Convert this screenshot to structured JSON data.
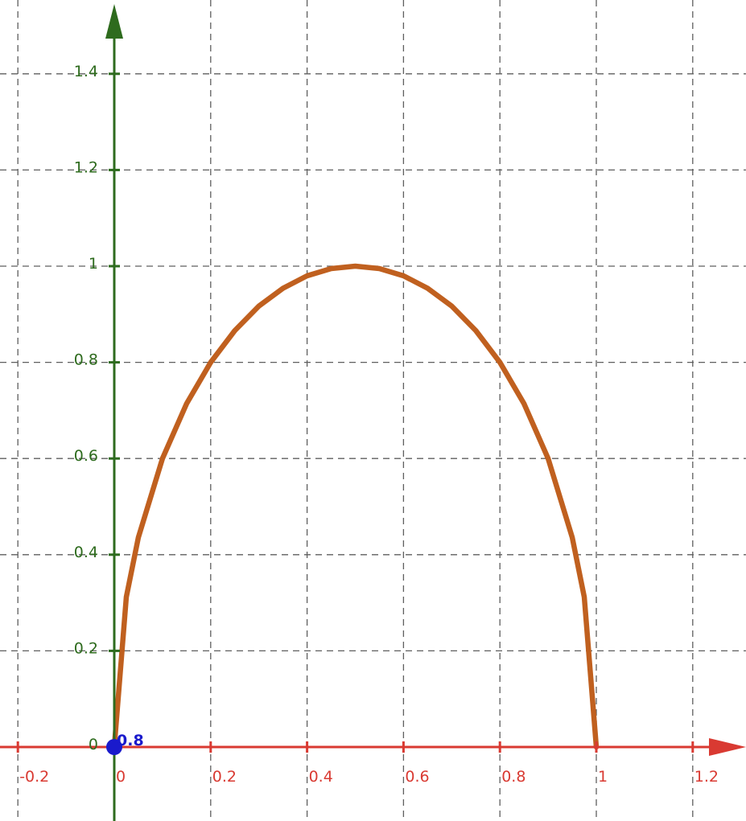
{
  "chart_data": {
    "type": "line",
    "title": "",
    "xlabel": "",
    "ylabel": "",
    "xlim": [
      -0.2,
      1.3
    ],
    "ylim": [
      -0.08,
      1.52
    ],
    "grid": true,
    "x_ticks": [
      {
        "value": -0.2,
        "label": "-0.2"
      },
      {
        "value": 0,
        "label": "0"
      },
      {
        "value": 0.2,
        "label": "0.2"
      },
      {
        "value": 0.4,
        "label": "0.4"
      },
      {
        "value": 0.6,
        "label": "0.6"
      },
      {
        "value": 0.8,
        "label": "0.8"
      },
      {
        "value": 1,
        "label": "1"
      },
      {
        "value": 1.2,
        "label": "1.2"
      }
    ],
    "y_ticks": [
      {
        "value": 0,
        "label": "0"
      },
      {
        "value": 0.2,
        "label": "0.2"
      },
      {
        "value": 0.4,
        "label": "0.4"
      },
      {
        "value": 0.6,
        "label": "0.6"
      },
      {
        "value": 0.8,
        "label": "0.8"
      },
      {
        "value": 1,
        "label": "1"
      },
      {
        "value": 1.2,
        "label": "1.2"
      },
      {
        "value": 1.4,
        "label": "1.4"
      }
    ],
    "series": [
      {
        "color": "#c0601f",
        "x": [
          0,
          0.025,
          0.05,
          0.1,
          0.15,
          0.2,
          0.25,
          0.3,
          0.35,
          0.4,
          0.45,
          0.5,
          0.55,
          0.6,
          0.65,
          0.7,
          0.75,
          0.8,
          0.85,
          0.9,
          0.95,
          0.975,
          1
        ],
        "y": [
          0,
          0.312,
          0.436,
          0.6,
          0.714,
          0.8,
          0.866,
          0.917,
          0.954,
          0.98,
          0.995,
          1.0,
          0.995,
          0.98,
          0.954,
          0.917,
          0.866,
          0.8,
          0.714,
          0.6,
          0.436,
          0.312,
          0
        ]
      }
    ],
    "points": [
      {
        "x": 0,
        "y": 0,
        "color": "#1a1acc",
        "label": "0.8"
      }
    ],
    "x_axis_color": "#d93a32",
    "y_axis_color": "#2e6b1e"
  }
}
